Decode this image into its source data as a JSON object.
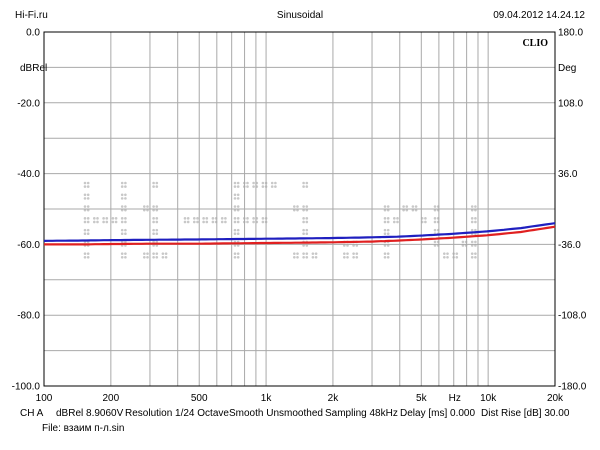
{
  "header": {
    "left": "Hi-Fi.ru",
    "center": "Sinusoidal",
    "right": "09.04.2012 14.24.12"
  },
  "logo_text": "CLIO",
  "watermark_text": "Hi-Fi.ru",
  "footer": {
    "line1": [
      "CH A",
      "dBRel 8.9060V",
      "Resolution 1/24 Octave",
      "Smooth Unsmoothed",
      "Sampling 48kHz",
      "Delay [ms] 0.000",
      "Dist Rise [dB] 30.00"
    ],
    "line2": "File: взаим п-л.sin"
  },
  "colors": {
    "background": "#ffffff",
    "grid": "#a9a9a9",
    "frame": "#000000",
    "watermark": "#c8c8c8",
    "series_blue": "#1f1fbf",
    "series_red": "#e02020"
  },
  "chart_data": {
    "type": "line",
    "x_scale": "log",
    "xlim": [
      100,
      20000
    ],
    "ylim": [
      -100,
      0
    ],
    "y2lim": [
      -180,
      180
    ],
    "ylabel": "dBRel",
    "y2label": "Deg",
    "xlabel": "Hz",
    "grid": true,
    "x_ticks": [
      {
        "value": 100,
        "label": "100"
      },
      {
        "value": 200,
        "label": "200"
      },
      {
        "value": 500,
        "label": "500"
      },
      {
        "value": 1000,
        "label": "1k"
      },
      {
        "value": 2000,
        "label": "2k"
      },
      {
        "value": 5000,
        "label": "5k"
      },
      {
        "value": 7071,
        "label": "Hz"
      },
      {
        "value": 10000,
        "label": "10k"
      },
      {
        "value": 20000,
        "label": "20k"
      }
    ],
    "y_ticks": [
      {
        "value": 0,
        "label": "0.0"
      },
      {
        "value": -20,
        "label": "-20.0"
      },
      {
        "value": -40,
        "label": "-40.0"
      },
      {
        "value": -60,
        "label": "-60.0"
      },
      {
        "value": -80,
        "label": "-80.0"
      },
      {
        "value": -100,
        "label": "-100.0"
      }
    ],
    "y2_ticks": [
      {
        "value": 180,
        "label": "180.0"
      },
      {
        "value": 108,
        "label": "108.0"
      },
      {
        "value": 36,
        "label": "36.0"
      },
      {
        "value": -36,
        "label": "-36.0"
      },
      {
        "value": -108,
        "label": "-108.0"
      },
      {
        "value": -180,
        "label": "-180.0"
      }
    ],
    "series": [
      {
        "color": "#1f1fbf",
        "x": [
          100,
          150,
          200,
          300,
          500,
          700,
          1000,
          1500,
          2000,
          3000,
          4000,
          5000,
          7000,
          10000,
          14000,
          20000
        ],
        "y": [
          -59.0,
          -58.9,
          -58.8,
          -58.7,
          -58.6,
          -58.5,
          -58.4,
          -58.3,
          -58.2,
          -58.0,
          -57.8,
          -57.5,
          -57.0,
          -56.3,
          -55.4,
          -54.0
        ]
      },
      {
        "color": "#e02020",
        "x": [
          100,
          150,
          200,
          300,
          500,
          700,
          1000,
          1500,
          2000,
          3000,
          4000,
          5000,
          7000,
          10000,
          14000,
          20000
        ],
        "y": [
          -60.0,
          -60.0,
          -59.9,
          -59.8,
          -59.8,
          -59.7,
          -59.6,
          -59.5,
          -59.4,
          -59.2,
          -58.9,
          -58.6,
          -58.1,
          -57.4,
          -56.5,
          -55.0
        ]
      }
    ]
  }
}
